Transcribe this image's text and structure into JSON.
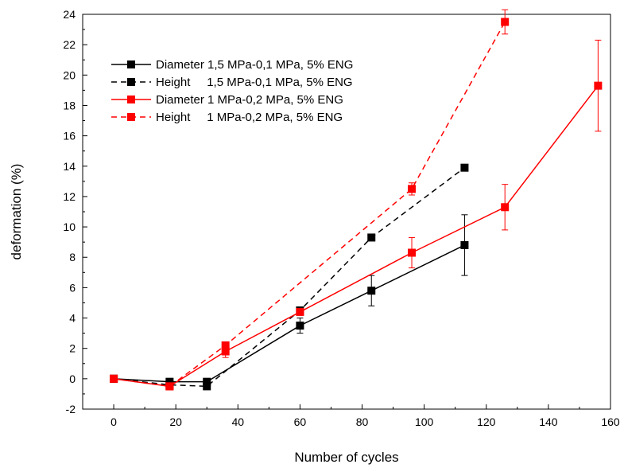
{
  "chart_data": {
    "type": "line",
    "title": "",
    "xlabel": "Number of cycles",
    "ylabel": "deformation (%)",
    "xlim": [
      -10,
      160
    ],
    "ylim": [
      -2,
      24
    ],
    "x_ticks": [
      0,
      20,
      40,
      60,
      80,
      100,
      120,
      140,
      160
    ],
    "y_ticks": [
      -2,
      0,
      2,
      4,
      6,
      8,
      10,
      12,
      14,
      16,
      18,
      20,
      22,
      24
    ],
    "grid": false,
    "legend_position": "top-left",
    "series": [
      {
        "name": "Diameter 1,5 MPa-0,1 MPa, 5% ENG",
        "color": "#000000",
        "line_style": "solid",
        "marker": "square",
        "x": [
          0,
          18,
          30,
          60,
          83,
          113
        ],
        "y": [
          0,
          -0.2,
          -0.2,
          3.5,
          5.8,
          8.8
        ],
        "error": [
          0,
          0,
          0,
          0.5,
          1.0,
          2.0
        ]
      },
      {
        "name": "Height     1,5 MPa-0,1 MPa, 5% ENG",
        "color": "#000000",
        "line_style": "dashed",
        "marker": "square",
        "x": [
          0,
          18,
          30,
          60,
          83,
          113
        ],
        "y": [
          0,
          -0.4,
          -0.5,
          4.5,
          9.3,
          13.9
        ],
        "error": [
          0,
          0,
          0,
          0,
          0,
          0
        ]
      },
      {
        "name": "Diameter 1 MPa-0,2 MPa, 5% ENG",
        "color": "#ff0000",
        "line_style": "solid",
        "marker": "square",
        "x": [
          0,
          18,
          36,
          60,
          96,
          126,
          156
        ],
        "y": [
          0,
          -0.5,
          1.8,
          4.4,
          8.3,
          11.3,
          19.3
        ],
        "error": [
          0,
          0,
          0.4,
          0,
          1.0,
          1.5,
          3.0
        ]
      },
      {
        "name": "Height     1 MPa-0,2 MPa, 5% ENG",
        "color": "#ff0000",
        "line_style": "dashed",
        "marker": "square",
        "x": [
          0,
          18,
          36,
          96,
          126
        ],
        "y": [
          0,
          -0.5,
          2.2,
          12.5,
          23.5
        ],
        "error": [
          0,
          0,
          0,
          0.4,
          0.8
        ]
      }
    ]
  }
}
